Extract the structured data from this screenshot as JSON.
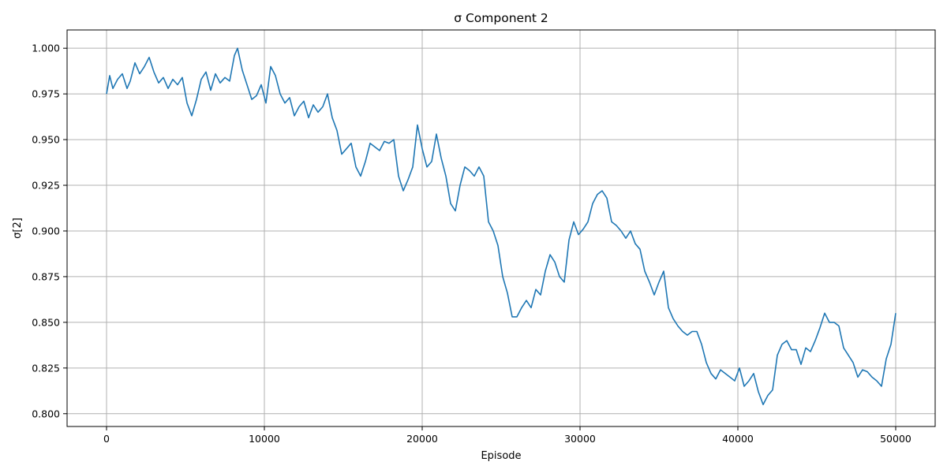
{
  "chart_data": {
    "type": "line",
    "title": "σ Component 2",
    "xlabel": "Episode",
    "ylabel": "σ[2]",
    "xlim": [
      -2500,
      52500
    ],
    "ylim": [
      0.793,
      1.01
    ],
    "xticks": [
      0,
      10000,
      20000,
      30000,
      40000,
      50000
    ],
    "xtick_labels": [
      "0",
      "10000",
      "20000",
      "30000",
      "40000",
      "50000"
    ],
    "yticks": [
      0.8,
      0.825,
      0.85,
      0.875,
      0.9,
      0.925,
      0.95,
      0.975,
      1.0
    ],
    "ytick_labels": [
      "0.800",
      "0.825",
      "0.850",
      "0.875",
      "0.900",
      "0.925",
      "0.950",
      "0.975",
      "1.000"
    ],
    "grid": true,
    "color": "#1f77b4",
    "series": [
      {
        "x": [
          0,
          200,
          400,
          700,
          1000,
          1300,
          1500,
          1800,
          2100,
          2400,
          2700,
          3000,
          3300,
          3600,
          3900,
          4200,
          4500,
          4800,
          5100,
          5400,
          5700,
          6000,
          6300,
          6600,
          6900,
          7200,
          7500,
          7800,
          8100,
          8300,
          8600,
          8900,
          9200,
          9500,
          9800,
          10100,
          10400,
          10700,
          11000,
          11300,
          11600,
          11900,
          12200,
          12500,
          12800,
          13100,
          13400,
          13700,
          14000,
          14300,
          14600,
          14900,
          15200,
          15500,
          15800,
          16100,
          16400,
          16700,
          17000,
          17300,
          17600,
          17900,
          18200,
          18500,
          18800,
          19100,
          19400,
          19700,
          20000,
          20300,
          20600,
          20900,
          21200,
          21500,
          21800,
          22100,
          22400,
          22700,
          23000,
          23300,
          23600,
          23900,
          24200,
          24500,
          24800,
          25100,
          25400,
          25700,
          26000,
          26300,
          26600,
          26900,
          27200,
          27500,
          27800,
          28100,
          28400,
          28700,
          29000,
          29300,
          29600,
          29900,
          30200,
          30500,
          30800,
          31100,
          31400,
          31700,
          32000,
          32300,
          32600,
          32900,
          33200,
          33500,
          33800,
          34100,
          34400,
          34700,
          35000,
          35300,
          35600,
          35900,
          36200,
          36500,
          36800,
          37100,
          37400,
          37700,
          38000,
          38300,
          38600,
          38900,
          39200,
          39500,
          39800,
          40100,
          40400,
          40700,
          41000,
          41300,
          41600,
          41900,
          42200,
          42500,
          42800,
          43100,
          43400,
          43700,
          44000,
          44300,
          44600,
          44900,
          45200,
          45500,
          45800,
          46100,
          46400,
          46700,
          47000,
          47300,
          47600,
          47900,
          48200,
          48500,
          48800,
          49100,
          49400,
          49700,
          50000
        ],
        "y": [
          0.975,
          0.985,
          0.978,
          0.983,
          0.986,
          0.978,
          0.982,
          0.992,
          0.986,
          0.99,
          0.995,
          0.987,
          0.981,
          0.984,
          0.978,
          0.983,
          0.98,
          0.984,
          0.97,
          0.963,
          0.972,
          0.983,
          0.987,
          0.977,
          0.986,
          0.981,
          0.984,
          0.982,
          0.996,
          1.0,
          0.988,
          0.98,
          0.972,
          0.974,
          0.98,
          0.97,
          0.99,
          0.985,
          0.975,
          0.97,
          0.973,
          0.963,
          0.968,
          0.971,
          0.962,
          0.969,
          0.965,
          0.968,
          0.975,
          0.962,
          0.955,
          0.942,
          0.945,
          0.948,
          0.935,
          0.93,
          0.938,
          0.948,
          0.946,
          0.944,
          0.949,
          0.948,
          0.95,
          0.93,
          0.922,
          0.928,
          0.935,
          0.958,
          0.945,
          0.935,
          0.938,
          0.953,
          0.94,
          0.93,
          0.915,
          0.911,
          0.925,
          0.935,
          0.933,
          0.93,
          0.935,
          0.93,
          0.905,
          0.9,
          0.892,
          0.875,
          0.866,
          0.853,
          0.853,
          0.858,
          0.862,
          0.858,
          0.868,
          0.865,
          0.878,
          0.887,
          0.883,
          0.875,
          0.872,
          0.895,
          0.905,
          0.898,
          0.901,
          0.905,
          0.915,
          0.92,
          0.922,
          0.918,
          0.905,
          0.903,
          0.9,
          0.896,
          0.9,
          0.893,
          0.89,
          0.878,
          0.872,
          0.865,
          0.872,
          0.878,
          0.858,
          0.852,
          0.848,
          0.845,
          0.843,
          0.845,
          0.845,
          0.838,
          0.828,
          0.822,
          0.819,
          0.824,
          0.822,
          0.82,
          0.818,
          0.825,
          0.815,
          0.818,
          0.822,
          0.812,
          0.805,
          0.81,
          0.813,
          0.832,
          0.838,
          0.84,
          0.835,
          0.835,
          0.827,
          0.836,
          0.834,
          0.84,
          0.847,
          0.855,
          0.85,
          0.85,
          0.848,
          0.836,
          0.832,
          0.828,
          0.82,
          0.824,
          0.823,
          0.82,
          0.818,
          0.815,
          0.83,
          0.838,
          0.855
        ]
      }
    ]
  }
}
